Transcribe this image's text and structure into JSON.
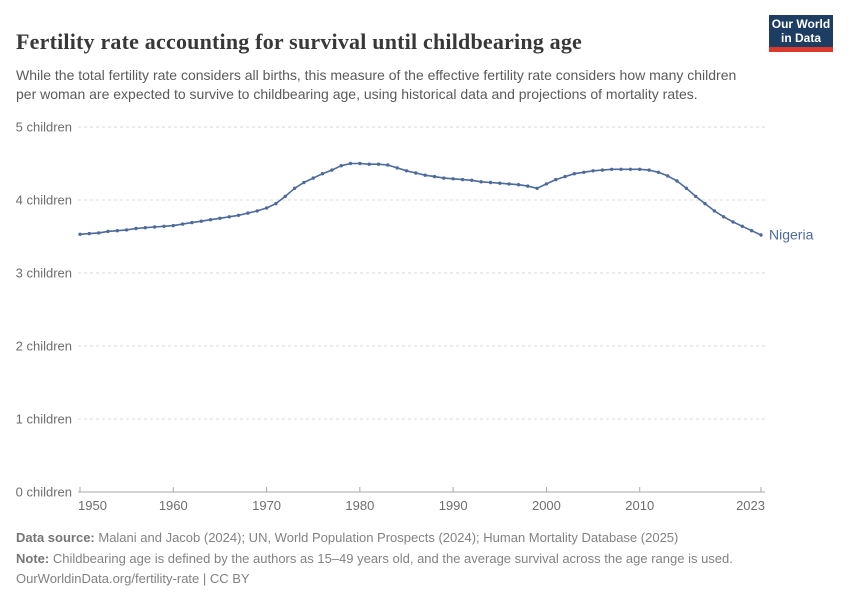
{
  "header": {
    "title": "Fertility rate accounting for survival until childbearing age",
    "subtitle": "While the total fertility rate considers all births, this measure of the effective fertility rate considers how many children per woman are expected to survive to childbearing age, using historical data and projections of mortality rates.",
    "logo": {
      "line1": "Our World",
      "line2": "in Data"
    }
  },
  "chart_data": {
    "type": "line",
    "title": "Fertility rate accounting for survival until childbearing age",
    "xlabel": "",
    "ylabel": "children",
    "xlim": [
      1950,
      2023
    ],
    "ylim": [
      0,
      5
    ],
    "grid": "horizontal-dashed",
    "legend_position": "end-of-line-label",
    "x_ticks": [
      1950,
      1960,
      1970,
      1980,
      1990,
      2000,
      2010,
      2023
    ],
    "y_ticks": [
      0,
      1,
      2,
      3,
      4,
      5
    ],
    "y_tick_labels": [
      "0 children",
      "1 children",
      "2 children",
      "3 children",
      "4 children",
      "5 children"
    ],
    "end_label": "Nigeria",
    "x": [
      1950,
      1951,
      1952,
      1953,
      1954,
      1955,
      1956,
      1957,
      1958,
      1959,
      1960,
      1961,
      1962,
      1963,
      1964,
      1965,
      1966,
      1967,
      1968,
      1969,
      1970,
      1971,
      1972,
      1973,
      1974,
      1975,
      1976,
      1977,
      1978,
      1979,
      1980,
      1981,
      1982,
      1983,
      1984,
      1985,
      1986,
      1987,
      1988,
      1989,
      1990,
      1991,
      1992,
      1993,
      1994,
      1995,
      1996,
      1997,
      1998,
      1999,
      2000,
      2001,
      2002,
      2003,
      2004,
      2005,
      2006,
      2007,
      2008,
      2009,
      2010,
      2011,
      2012,
      2013,
      2014,
      2015,
      2016,
      2017,
      2018,
      2019,
      2020,
      2021,
      2022,
      2023
    ],
    "series": [
      {
        "name": "Nigeria",
        "color": "#4C6A9C",
        "values": [
          3.53,
          3.54,
          3.55,
          3.57,
          3.58,
          3.59,
          3.61,
          3.62,
          3.63,
          3.64,
          3.65,
          3.67,
          3.69,
          3.71,
          3.73,
          3.75,
          3.77,
          3.79,
          3.82,
          3.85,
          3.89,
          3.95,
          4.05,
          4.16,
          4.24,
          4.3,
          4.36,
          4.41,
          4.47,
          4.5,
          4.5,
          4.49,
          4.49,
          4.48,
          4.44,
          4.4,
          4.37,
          4.34,
          4.32,
          4.3,
          4.29,
          4.28,
          4.27,
          4.25,
          4.24,
          4.23,
          4.22,
          4.21,
          4.19,
          4.16,
          4.22,
          4.28,
          4.32,
          4.36,
          4.38,
          4.4,
          4.41,
          4.42,
          4.42,
          4.42,
          4.42,
          4.41,
          4.38,
          4.33,
          4.26,
          4.16,
          4.05,
          3.95,
          3.85,
          3.77,
          3.7,
          3.64,
          3.58,
          3.52
        ]
      }
    ]
  },
  "footer": {
    "datasource_label": "Data source:",
    "datasource_text": " Malani and Jacob (2024); UN, World Population Prospects (2024); Human Mortality Database (2025)",
    "note_label": "Note:",
    "note_text": " Childbearing age is defined by the authors as 15–49 years old, and the average survival across the age range is used.",
    "url_text": "OurWorldinData.org/fertility-rate | CC BY"
  },
  "colors": {
    "series_blue": "#4C6A9C",
    "grid": "#d8d8d8",
    "axis": "#a8a8a8",
    "tick_text": "#6e6e6e",
    "title_text": "#383838",
    "subtitle_text": "#5a5a5a",
    "footer_text": "#828282",
    "logo_navy": "#1d3d63",
    "logo_red": "#dc382c"
  }
}
